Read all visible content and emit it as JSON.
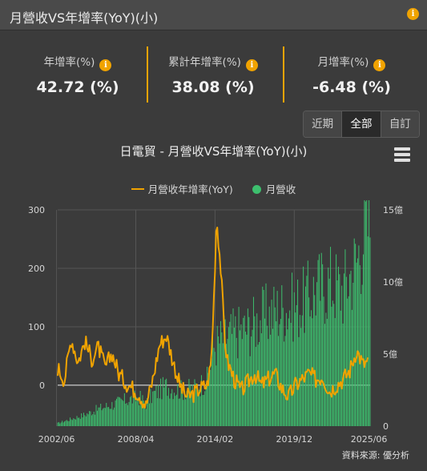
{
  "header": {
    "title": "月營收VS年增率(YoY)(小)",
    "info_icon": "info-icon"
  },
  "stats": [
    {
      "label": "年增率(%)",
      "value": "42.72 (%)"
    },
    {
      "label": "累計年增率(%)",
      "value": "38.08 (%)"
    },
    {
      "label": "月增率(%)",
      "value": "-6.48 (%)"
    }
  ],
  "range_buttons": [
    "近期",
    "全部",
    "自訂"
  ],
  "range_selected": "全部",
  "colors": {
    "accent": "#f0a300",
    "bars": "#3dbf6e",
    "background": "#3b3b3b"
  },
  "source": "資料來源: 優分析",
  "chart_data": {
    "type": "bar+line",
    "title": "日電貿 - 月營收VS年增率(YoY)(小)",
    "legend": {
      "placement": "top-center",
      "entries": [
        "月營收年增率(YoY)",
        "月營收"
      ]
    },
    "x_ticks": [
      "2002/06",
      "2008/04",
      "2014/02",
      "2019/12",
      "2025/06"
    ],
    "y_left": {
      "ticks": [
        0,
        100,
        200,
        300
      ],
      "range": [
        -70,
        300
      ]
    },
    "y_right": {
      "ticks": [
        "0",
        "5億",
        "10億",
        "15億"
      ],
      "range": [
        0,
        15
      ]
    },
    "grid": true,
    "series": [
      {
        "name": "月營收年增率(YoY)",
        "type": "line",
        "axis": "left",
        "points": [
          [
            2002.5,
            30
          ],
          [
            2003.0,
            10
          ],
          [
            2003.5,
            80
          ],
          [
            2004.0,
            40
          ],
          [
            2004.5,
            75
          ],
          [
            2005.0,
            45
          ],
          [
            2005.5,
            65
          ],
          [
            2006.0,
            30
          ],
          [
            2006.5,
            55
          ],
          [
            2007.0,
            20
          ],
          [
            2007.5,
            5
          ],
          [
            2008.0,
            -5
          ],
          [
            2008.5,
            -15
          ],
          [
            2009.0,
            -35
          ],
          [
            2009.5,
            10
          ],
          [
            2010.0,
            70
          ],
          [
            2010.5,
            85
          ],
          [
            2011.0,
            40
          ],
          [
            2011.5,
            0
          ],
          [
            2012.0,
            -20
          ],
          [
            2012.5,
            -15
          ],
          [
            2013.0,
            -5
          ],
          [
            2013.5,
            0
          ],
          [
            2013.8,
            40
          ],
          [
            2014.0,
            150
          ],
          [
            2014.2,
            290
          ],
          [
            2014.5,
            200
          ],
          [
            2014.8,
            80
          ],
          [
            2015.0,
            40
          ],
          [
            2015.5,
            10
          ],
          [
            2016.0,
            -10
          ],
          [
            2016.5,
            5
          ],
          [
            2017.0,
            20
          ],
          [
            2017.5,
            0
          ],
          [
            2018.0,
            10
          ],
          [
            2018.5,
            20
          ],
          [
            2019.0,
            -5
          ],
          [
            2019.5,
            -20
          ],
          [
            2020.0,
            0
          ],
          [
            2020.5,
            10
          ],
          [
            2021.0,
            20
          ],
          [
            2021.5,
            10
          ],
          [
            2022.0,
            15
          ],
          [
            2022.5,
            -10
          ],
          [
            2023.0,
            0
          ],
          [
            2023.5,
            10
          ],
          [
            2024.0,
            25
          ],
          [
            2024.5,
            60
          ],
          [
            2025.0,
            35
          ],
          [
            2025.4,
            42.72
          ]
        ]
      },
      {
        "name": "月營收",
        "type": "bar",
        "axis": "right",
        "unit": "億",
        "points": [
          [
            2002.5,
            0.2
          ],
          [
            2003.5,
            0.5
          ],
          [
            2004.5,
            0.8
          ],
          [
            2005.5,
            1.2
          ],
          [
            2006.5,
            1.5
          ],
          [
            2007.5,
            1.8
          ],
          [
            2008.5,
            2.0
          ],
          [
            2009.0,
            1.6
          ],
          [
            2009.5,
            2.2
          ],
          [
            2010.5,
            2.8
          ],
          [
            2011.5,
            2.5
          ],
          [
            2012.5,
            2.6
          ],
          [
            2013.5,
            3.2
          ],
          [
            2014.0,
            5.5
          ],
          [
            2014.5,
            6.0
          ],
          [
            2015.5,
            6.5
          ],
          [
            2016.5,
            6.8
          ],
          [
            2017.5,
            7.5
          ],
          [
            2018.5,
            8.0
          ],
          [
            2019.5,
            8.2
          ],
          [
            2020.5,
            8.5
          ],
          [
            2021.5,
            9.5
          ],
          [
            2022.5,
            10.0
          ],
          [
            2023.5,
            9.5
          ],
          [
            2024.5,
            11.5
          ],
          [
            2025.2,
            14.0
          ]
        ]
      }
    ]
  }
}
